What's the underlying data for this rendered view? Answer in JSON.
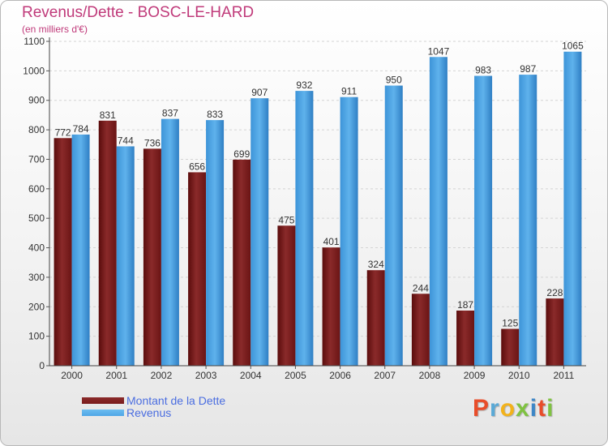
{
  "header": {
    "title": "Revenus/Dette - BOSC-LE-HARD",
    "subtitle": "(en milliers d'€)"
  },
  "colors": {
    "dette": "#7a1c1c",
    "revenus": "#4ea6e6",
    "title": "#c03a7a",
    "legend_text": "#4a6de0"
  },
  "chart_data": {
    "type": "bar",
    "title": "Revenus/Dette - BOSC-LE-HARD",
    "ylabel": "(en milliers d'€)",
    "xlabel": "",
    "categories": [
      "2000",
      "2001",
      "2002",
      "2003",
      "2004",
      "2005",
      "2006",
      "2007",
      "2008",
      "2009",
      "2010",
      "2011"
    ],
    "series": [
      {
        "name": "Montant de la Dette",
        "values": [
          772,
          831,
          736,
          656,
          699,
          475,
          401,
          324,
          244,
          187,
          125,
          228
        ]
      },
      {
        "name": "Revenus",
        "values": [
          784,
          744,
          837,
          833,
          907,
          932,
          911,
          950,
          1047,
          983,
          987,
          1065
        ]
      }
    ],
    "ylim": [
      0,
      1100
    ],
    "yticks": [
      0,
      100,
      200,
      300,
      400,
      500,
      600,
      700,
      800,
      900,
      1000,
      1100
    ],
    "grid": true,
    "legend": "bottom-left"
  },
  "legend": {
    "items": [
      {
        "label": "Montant de la Dette"
      },
      {
        "label": "Revenus"
      }
    ]
  },
  "logo": {
    "letters": [
      "P",
      "r",
      "o",
      "x",
      "i",
      "t",
      "i"
    ],
    "colors": [
      "#e84d2a",
      "#5aa9d6",
      "#f2b21b",
      "#7fc241",
      "#3d86c6",
      "#e84d2a",
      "#7fc241"
    ]
  }
}
